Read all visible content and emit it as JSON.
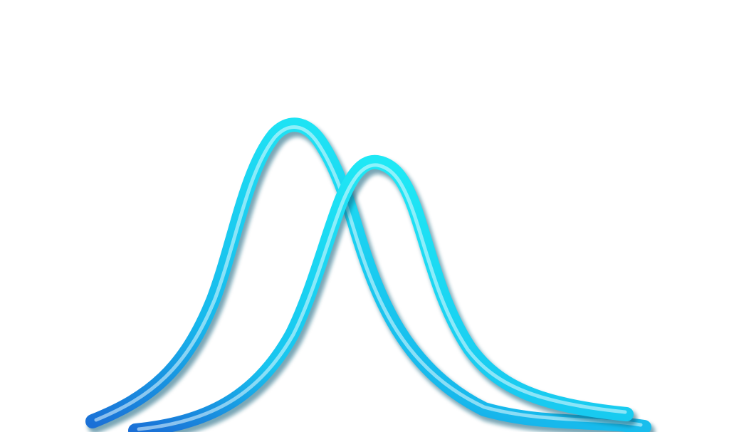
{
  "artwork": {
    "subject": "",
    "glow_color": "#1fe8f5",
    "core_color": "#eafcff",
    "shadow_color": "#0b5f7a",
    "tail_color": "#1a6fd6",
    "background": "#ffffff"
  }
}
